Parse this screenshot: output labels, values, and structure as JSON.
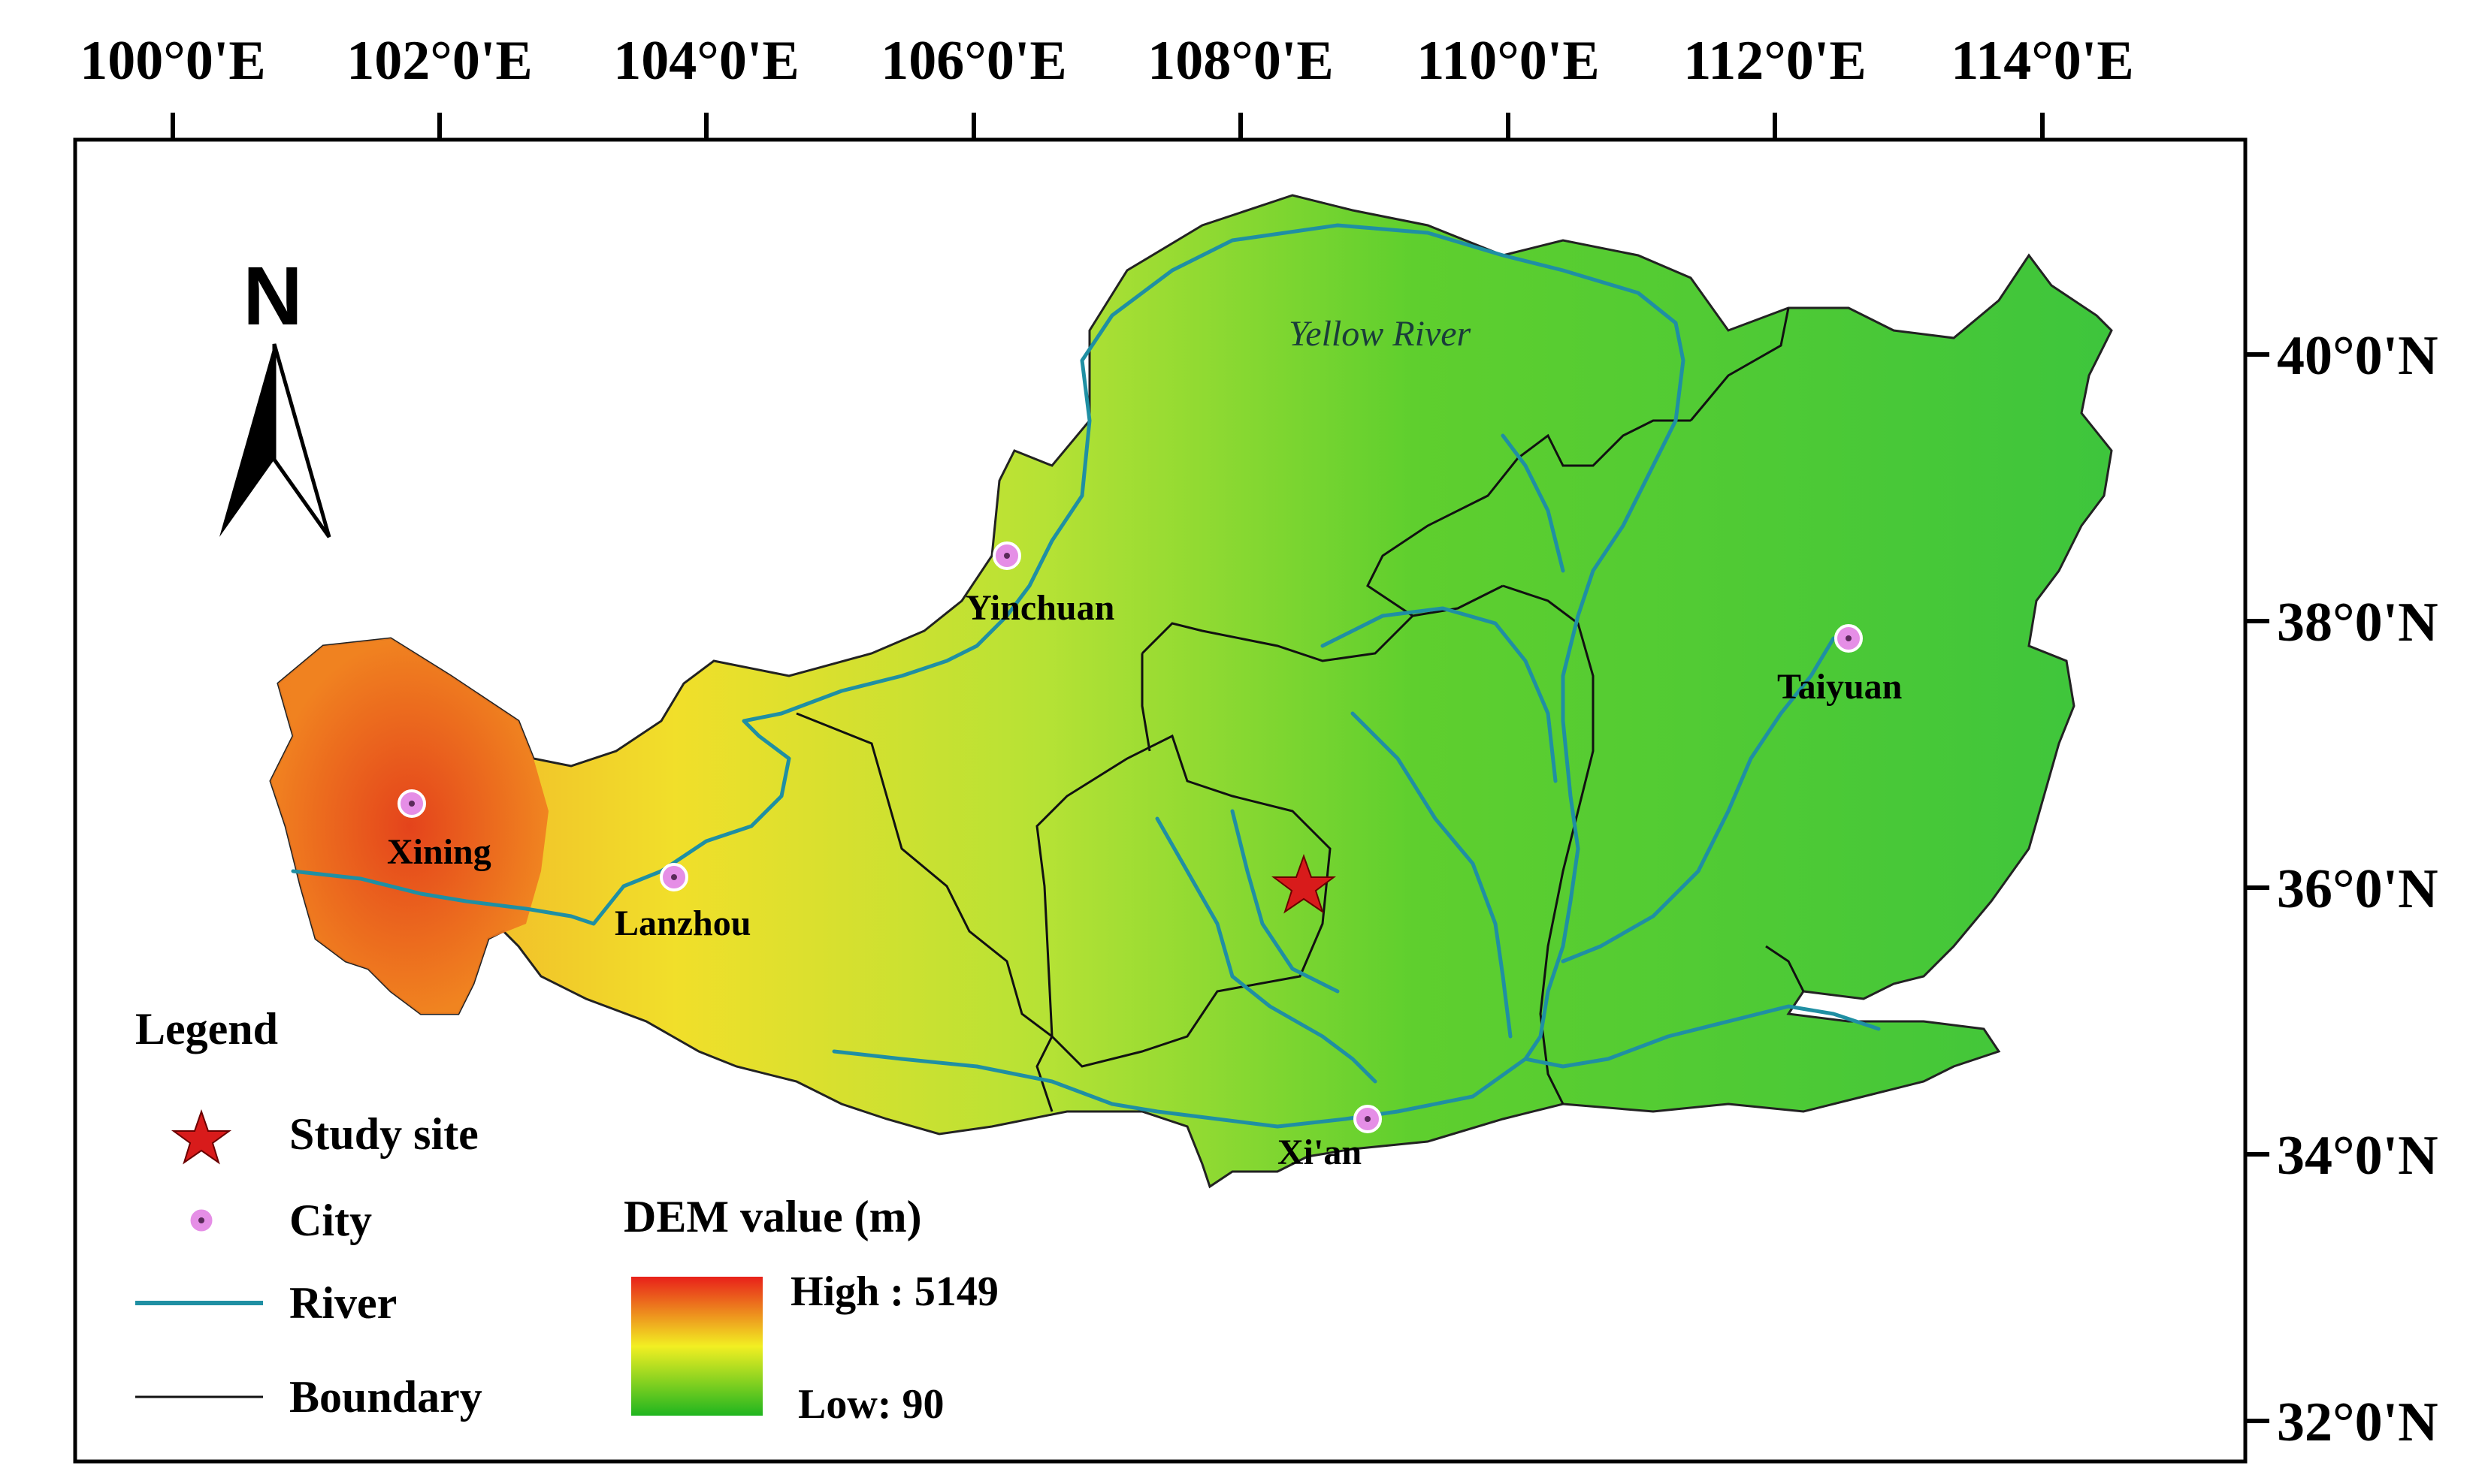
{
  "map": {
    "top_axis_labels": [
      "100°0'E",
      "102°0'E",
      "104°0'E",
      "106°0'E",
      "108°0'E",
      "110°0'E",
      "112°0'E",
      "114°0'E"
    ],
    "right_axis_labels": [
      "40°0'N",
      "38°0'N",
      "36°0'N",
      "34°0'N",
      "32°0'N"
    ],
    "north_arrow": "N",
    "river_name": "Yellow River",
    "cities": [
      "Yinchuan",
      "Taiyuan",
      "Xining",
      "Lanzhou",
      "Xi'an"
    ],
    "colors": {
      "river": "#1f8fa3",
      "boundary": "#111111",
      "study_site": "#d81b1b",
      "city": "#e58ee6",
      "dem_high": "#e8201a",
      "dem_mid": "#f2ef22",
      "dem_low": "#1fb51f"
    }
  },
  "legend": {
    "title": "Legend",
    "items": [
      "Study site",
      "City",
      "River",
      "Boundary"
    ],
    "dem_title": "DEM value (m)",
    "dem_high": "High : 5149",
    "dem_low": "Low: 90"
  }
}
